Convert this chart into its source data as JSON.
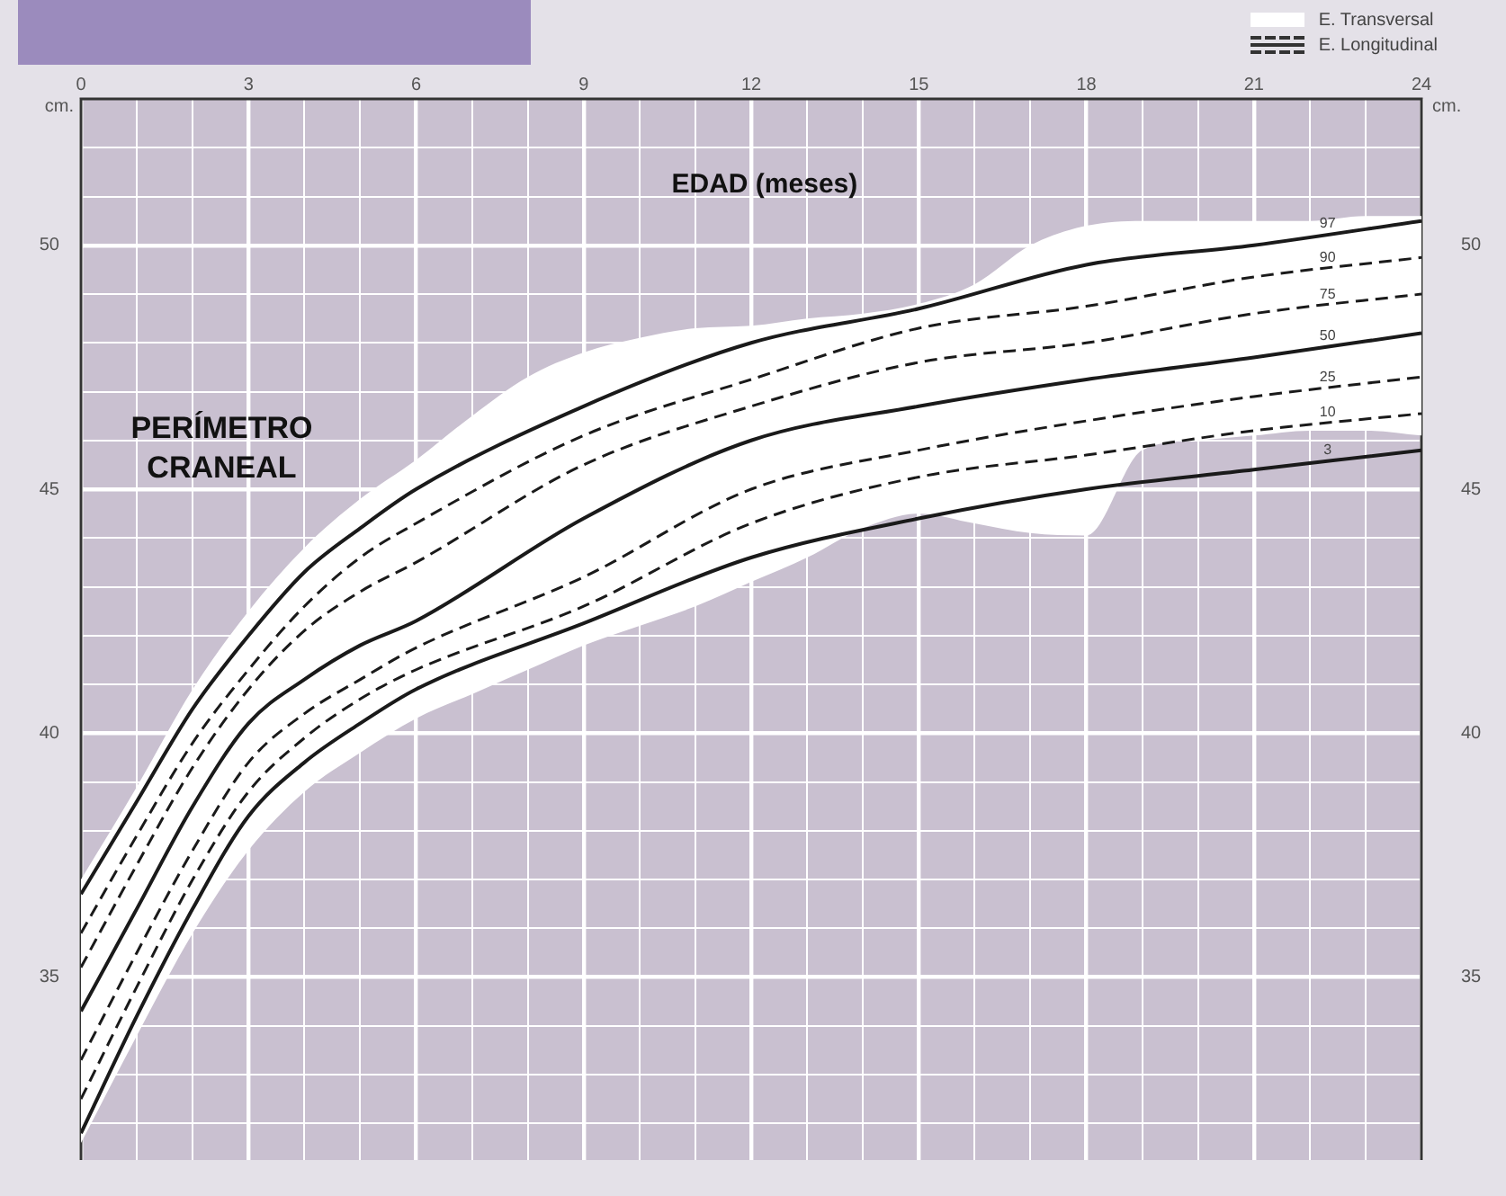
{
  "chart_data": {
    "type": "line",
    "title": "PERÍMETRO CRANEAL",
    "xlabel": "EDAD (meses)",
    "ylabel": "cm.",
    "y2label": "cm.",
    "annotations": [
      "E. Longitudinal"
    ],
    "xlim": [
      0,
      24
    ],
    "xticks": [
      0,
      {
        "value": 1,
        "label": null
      },
      {
        "value": 2,
        "label": null
      },
      3,
      {
        "value": 4,
        "label": null
      },
      {
        "value": 5,
        "label": null
      },
      6,
      {
        "value": 7,
        "label": null
      },
      {
        "value": 8,
        "label": null
      },
      9,
      {
        "value": 10,
        "label": null
      },
      {
        "value": 11,
        "label": null
      },
      12,
      {
        "value": 13,
        "label": null
      },
      {
        "value": 14,
        "label": null
      },
      15,
      {
        "value": 16,
        "label": null
      },
      {
        "value": 17,
        "label": null
      },
      18,
      {
        "value": 19,
        "label": null
      },
      {
        "value": 20,
        "label": null
      },
      21,
      {
        "value": 22,
        "label": null
      },
      {
        "value": 23,
        "label": null
      },
      24
    ],
    "ylim": [
      31.25,
      53
    ],
    "yticks": [
      {
        "value": 32,
        "label": null
      },
      {
        "value": 33,
        "label": null
      },
      {
        "value": 34,
        "label": null
      },
      35,
      {
        "value": 36,
        "label": null
      },
      {
        "value": 37,
        "label": null
      },
      {
        "value": 38,
        "label": null
      },
      {
        "value": 39,
        "label": null
      },
      40,
      {
        "value": 41,
        "label": null
      },
      {
        "value": 42,
        "label": null
      },
      {
        "value": 43,
        "label": null
      },
      {
        "value": 44,
        "label": null
      },
      45,
      {
        "value": 46,
        "label": null
      },
      {
        "value": 47,
        "label": null
      },
      {
        "value": 48,
        "label": null
      },
      {
        "value": 49,
        "label": null
      },
      50,
      {
        "value": 51,
        "label": null
      },
      {
        "value": 52,
        "label": null
      }
    ],
    "y2lim": [
      31.25,
      53
    ],
    "y2ticks": [
      35,
      40,
      45,
      50
    ],
    "grid": true,
    "legend": "top right",
    "marker": "none",
    "series": [
      {
        "name": "E. Transversal",
        "type": "area",
        "color": "#ffffff",
        "x": [
          0,
          1,
          2,
          3,
          4,
          5,
          6,
          7,
          8,
          9,
          10,
          11,
          12,
          13,
          14,
          15,
          16,
          17,
          18,
          19,
          20,
          21,
          22,
          23,
          24
        ],
        "lower": [
          31.6,
          33.8,
          35.9,
          37.6,
          38.8,
          39.6,
          40.3,
          40.8,
          41.3,
          41.8,
          42.2,
          42.6,
          43.1,
          43.6,
          44.2,
          44.5,
          44.3,
          44.1,
          44.05,
          45.8,
          46.0,
          46.1,
          46.2,
          46.2,
          46.1
        ],
        "values": [
          null,
          null,
          null,
          null,
          null,
          null,
          null,
          null,
          null,
          null,
          null,
          null,
          null,
          null,
          null,
          null,
          null,
          null,
          null,
          null,
          null,
          null,
          null,
          null,
          null
        ],
        "upper": [
          37.0,
          38.9,
          40.9,
          42.5,
          43.8,
          44.8,
          45.6,
          46.5,
          47.3,
          47.8,
          48.1,
          48.3,
          48.35,
          48.5,
          48.6,
          48.8,
          49.2,
          50.0,
          50.4,
          50.5,
          50.5,
          50.5,
          50.5,
          50.6,
          50.6
        ]
      },
      {
        "name": "97",
        "type": "line",
        "color": "#1a1a1a",
        "line_style": "solid",
        "x": [
          0,
          1,
          2,
          3,
          4,
          5,
          6,
          9,
          12,
          15,
          18,
          21,
          24
        ],
        "values": [
          36.7,
          38.6,
          40.5,
          42.0,
          43.3,
          44.2,
          45.0,
          46.7,
          48.0,
          48.7,
          49.6,
          50.0,
          50.5
        ]
      },
      {
        "name": "90",
        "type": "line",
        "color": "#1a1a1a",
        "line_style": "dashed",
        "x": [
          0,
          1,
          2,
          3,
          4,
          5,
          6,
          9,
          12,
          15,
          18,
          21,
          24
        ],
        "values": [
          35.9,
          37.9,
          39.8,
          41.3,
          42.6,
          43.6,
          44.3,
          46.1,
          47.25,
          48.3,
          48.75,
          49.35,
          49.75
        ]
      },
      {
        "name": "75",
        "type": "line",
        "color": "#1a1a1a",
        "line_style": "dashed",
        "x": [
          0,
          1,
          2,
          3,
          4,
          5,
          6,
          9,
          12,
          15,
          18,
          21,
          24
        ],
        "values": [
          35.2,
          37.3,
          39.3,
          40.9,
          42.1,
          42.9,
          43.5,
          45.5,
          46.7,
          47.6,
          48.0,
          48.6,
          49.0
        ]
      },
      {
        "name": "50",
        "type": "line",
        "color": "#1a1a1a",
        "line_style": "solid",
        "x": [
          0,
          1,
          2,
          3,
          4,
          5,
          6,
          9,
          12,
          15,
          18,
          21,
          24
        ],
        "values": [
          34.3,
          36.4,
          38.5,
          40.2,
          41.1,
          41.8,
          42.3,
          44.4,
          46.0,
          46.7,
          47.25,
          47.7,
          48.2
        ]
      },
      {
        "name": "25",
        "type": "line",
        "color": "#1a1a1a",
        "line_style": "dashed",
        "x": [
          0,
          1,
          2,
          3,
          4,
          5,
          6,
          9,
          12,
          15,
          18,
          21,
          24
        ],
        "values": [
          33.3,
          35.5,
          37.6,
          39.4,
          40.4,
          41.1,
          41.75,
          43.2,
          45.0,
          45.8,
          46.4,
          46.9,
          47.3
        ]
      },
      {
        "name": "10",
        "type": "line",
        "color": "#1a1a1a",
        "line_style": "dashed",
        "x": [
          0,
          1,
          2,
          3,
          4,
          5,
          6,
          9,
          12,
          15,
          18,
          21,
          24
        ],
        "values": [
          32.5,
          34.8,
          37.0,
          38.8,
          39.9,
          40.7,
          41.3,
          42.6,
          44.3,
          45.25,
          45.7,
          46.2,
          46.55
        ]
      },
      {
        "name": "3",
        "type": "line",
        "color": "#1a1a1a",
        "line_style": "solid",
        "x": [
          0,
          1,
          2,
          3,
          4,
          5,
          6,
          9,
          12,
          15,
          18,
          21,
          24
        ],
        "values": [
          31.8,
          34.2,
          36.4,
          38.3,
          39.4,
          40.2,
          40.9,
          42.25,
          43.6,
          44.4,
          45.0,
          45.4,
          45.8
        ]
      }
    ]
  }
}
